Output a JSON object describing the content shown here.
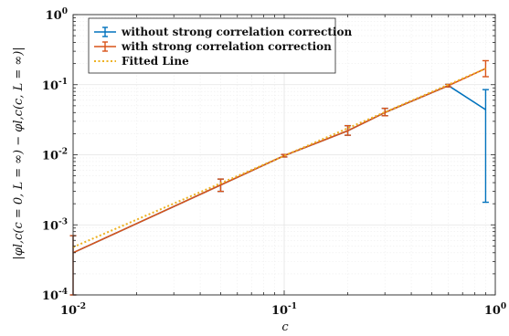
{
  "chart_data": {
    "type": "line",
    "xscale": "log",
    "yscale": "log",
    "xlim": [
      0.01,
      1
    ],
    "ylim": [
      0.0001,
      1
    ],
    "grid": true,
    "legend_placement": "top-left",
    "xlabel": "c",
    "ylabel": "|φl,c(c = 0, L = ∞) − φl,c(c, L = ∞)|",
    "x_ticks": [
      {
        "value": 0.01,
        "base": "10",
        "exp": "-2"
      },
      {
        "value": 0.1,
        "base": "10",
        "exp": "-1"
      },
      {
        "value": 1,
        "base": "10",
        "exp": "0"
      }
    ],
    "y_ticks": [
      {
        "value": 0.0001,
        "base": "10",
        "exp": "-4"
      },
      {
        "value": 0.001,
        "base": "10",
        "exp": "-3"
      },
      {
        "value": 0.01,
        "base": "10",
        "exp": "-2"
      },
      {
        "value": 0.1,
        "base": "10",
        "exp": "-1"
      },
      {
        "value": 1,
        "base": "10",
        "exp": "0"
      }
    ],
    "series": [
      {
        "name": "without strong correlation correction",
        "color": "#0072BD",
        "style": "solid",
        "errorbars": true,
        "points": [
          {
            "x": 0.01,
            "y": 0.0004,
            "lo": 0.0001,
            "hi": 0.0007
          },
          {
            "x": 0.05,
            "y": 0.0037,
            "lo": 0.003,
            "hi": 0.0045
          },
          {
            "x": 0.1,
            "y": 0.0097,
            "lo": 0.0093,
            "hi": 0.0101
          },
          {
            "x": 0.2,
            "y": 0.022,
            "lo": 0.019,
            "hi": 0.026
          },
          {
            "x": 0.3,
            "y": 0.04,
            "lo": 0.036,
            "hi": 0.046
          },
          {
            "x": 0.6,
            "y": 0.097,
            "lo": 0.093,
            "hi": 0.101
          },
          {
            "x": 0.9,
            "y": 0.044,
            "lo": 0.0021,
            "hi": 0.085
          }
        ]
      },
      {
        "name": "with strong correlation correction",
        "color": "#D95319",
        "style": "solid",
        "errorbars": true,
        "points": [
          {
            "x": 0.01,
            "y": 0.0004,
            "lo": 0.0001,
            "hi": 0.0007
          },
          {
            "x": 0.05,
            "y": 0.0037,
            "lo": 0.003,
            "hi": 0.0045
          },
          {
            "x": 0.1,
            "y": 0.0097,
            "lo": 0.0093,
            "hi": 0.0101
          },
          {
            "x": 0.2,
            "y": 0.022,
            "lo": 0.019,
            "hi": 0.026
          },
          {
            "x": 0.3,
            "y": 0.04,
            "lo": 0.036,
            "hi": 0.046
          },
          {
            "x": 0.6,
            "y": 0.097,
            "lo": 0.093,
            "hi": 0.101
          },
          {
            "x": 0.9,
            "y": 0.17,
            "lo": 0.13,
            "hi": 0.22
          }
        ]
      },
      {
        "name": "Fitted Line",
        "color": "#EDB120",
        "style": "dotted",
        "errorbars": false,
        "points": [
          {
            "x": 0.01,
            "y": 0.00048
          },
          {
            "x": 0.9,
            "y": 0.17
          }
        ]
      }
    ]
  }
}
